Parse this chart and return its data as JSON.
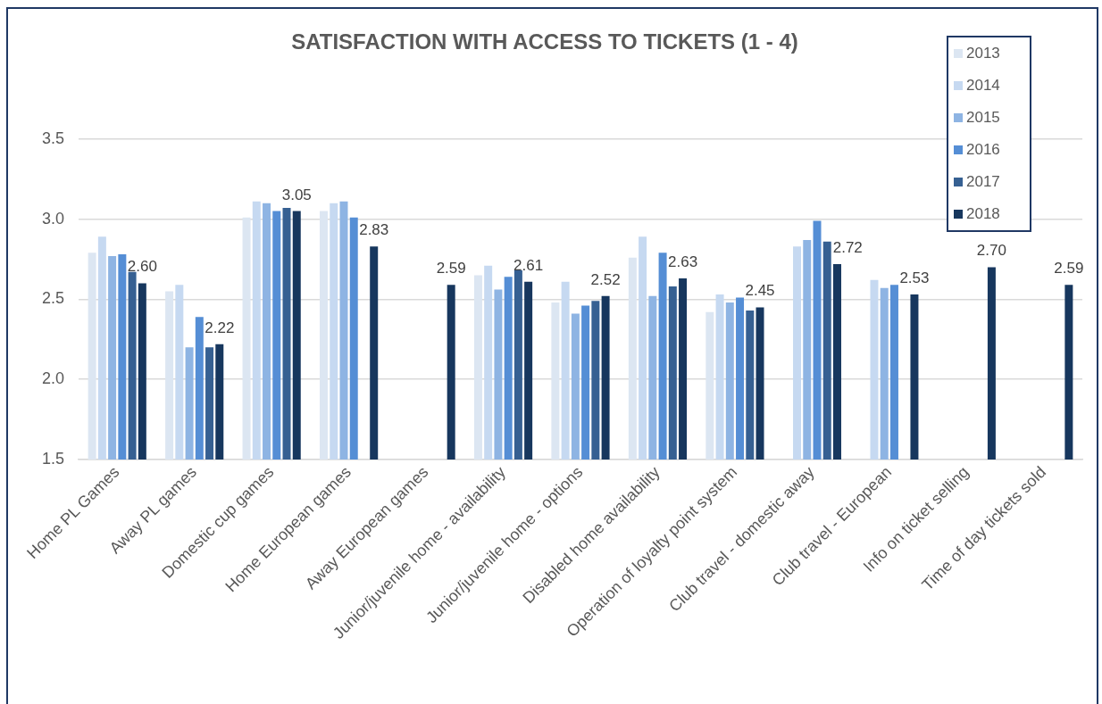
{
  "chart_data": {
    "type": "bar",
    "title": "SATISFACTION WITH ACCESS TO TICKETS (1 - 4)",
    "categories": [
      "Home PL Games",
      "Away PL games",
      "Domestic cup games",
      "Home European games",
      "Away European games",
      "Junior/juvenile home - availability",
      "Junior/juvenile home - options",
      "Disabled home availability",
      "Operation of loyalty point system",
      "Club travel - domestic away",
      "Club travel - European",
      "Info on ticket selling",
      "Time of day tickets sold"
    ],
    "series": [
      {
        "name": "2013",
        "color": "#dce6f2",
        "values": [
          2.79,
          2.55,
          3.01,
          3.05,
          null,
          2.65,
          2.48,
          2.76,
          2.42,
          null,
          null,
          null,
          null
        ]
      },
      {
        "name": "2014",
        "color": "#c6d9f1",
        "values": [
          2.89,
          2.59,
          3.11,
          3.1,
          null,
          2.71,
          2.61,
          2.89,
          2.53,
          2.83,
          2.62,
          null,
          null
        ]
      },
      {
        "name": "2015",
        "color": "#8eb4e3",
        "values": [
          2.77,
          2.2,
          3.1,
          3.11,
          null,
          2.56,
          2.41,
          2.52,
          2.48,
          2.87,
          2.57,
          null,
          null
        ]
      },
      {
        "name": "2016",
        "color": "#558ed5",
        "values": [
          2.78,
          2.39,
          3.05,
          3.01,
          null,
          2.64,
          2.46,
          2.79,
          2.51,
          2.99,
          2.59,
          null,
          null
        ]
      },
      {
        "name": "2017",
        "color": "#366092",
        "values": [
          2.67,
          2.2,
          3.07,
          null,
          null,
          2.68,
          2.49,
          2.58,
          2.43,
          2.86,
          null,
          null,
          null
        ]
      },
      {
        "name": "2018",
        "color": "#17375e",
        "values": [
          2.6,
          2.22,
          3.05,
          2.83,
          2.59,
          2.61,
          2.52,
          2.63,
          2.45,
          2.72,
          2.53,
          2.7,
          2.59
        ],
        "value_labels": [
          "2.60",
          "2.22",
          "3.05",
          "2.83",
          "2.59",
          "2.61",
          "2.52",
          "2.63",
          "2.45",
          "2.72",
          "2.53",
          "2.70",
          "2.59"
        ]
      }
    ],
    "ylim": [
      1.5,
      3.5
    ],
    "yticks": [
      1.5,
      {
        "value": 2,
        "label": "2.0"
      },
      2.5,
      {
        "value": 3,
        "label": "3.0"
      },
      3.5
    ],
    "grid": "y",
    "legend": "top right"
  }
}
